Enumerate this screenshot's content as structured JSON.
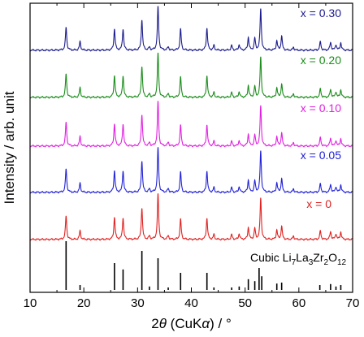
{
  "chart_data": {
    "type": "line",
    "title": "",
    "xlabel": "2θ (CuKα) / °",
    "ylabel": "Intensity / arb. unit",
    "xlim": [
      10,
      70
    ],
    "x_ticks": [
      "10",
      "20",
      "30",
      "40",
      "50",
      "60",
      "70"
    ],
    "grid": false,
    "legend": "labels placed inside the plot at the right of each pattern",
    "series": [
      {
        "name": "x = 0.30",
        "color": "#1a1a8c",
        "peaks": [
          [
            16.7,
            0.49
          ],
          [
            19.3,
            0.18
          ],
          [
            25.7,
            0.45
          ],
          [
            27.3,
            0.45
          ],
          [
            30.8,
            0.65
          ],
          [
            32.2,
            0.06
          ],
          [
            33.8,
            0.92
          ],
          [
            35.7,
            0.07
          ],
          [
            38.0,
            0.45
          ],
          [
            42.9,
            0.47
          ],
          [
            44.2,
            0.1
          ],
          [
            47.5,
            0.1
          ],
          [
            48.9,
            0.12
          ],
          [
            50.6,
            0.27
          ],
          [
            51.8,
            0.25
          ],
          [
            52.9,
            0.88
          ],
          [
            55.9,
            0.2
          ],
          [
            56.8,
            0.3
          ],
          [
            59.0,
            0.06
          ],
          [
            64.0,
            0.18
          ],
          [
            65.9,
            0.17
          ],
          [
            66.9,
            0.12
          ],
          [
            67.8,
            0.16
          ]
        ]
      },
      {
        "name": "x = 0.20",
        "color": "#1a8c1a",
        "peaks": [
          [
            16.7,
            0.5
          ],
          [
            19.3,
            0.2
          ],
          [
            25.7,
            0.46
          ],
          [
            27.3,
            0.46
          ],
          [
            30.8,
            0.66
          ],
          [
            32.2,
            0.07
          ],
          [
            33.8,
            0.93
          ],
          [
            35.7,
            0.08
          ],
          [
            38.0,
            0.43
          ],
          [
            42.9,
            0.46
          ],
          [
            44.2,
            0.1
          ],
          [
            47.5,
            0.1
          ],
          [
            48.9,
            0.12
          ],
          [
            50.6,
            0.25
          ],
          [
            51.8,
            0.23
          ],
          [
            52.9,
            0.86
          ],
          [
            55.9,
            0.2
          ],
          [
            56.8,
            0.28
          ],
          [
            59.0,
            0.07
          ],
          [
            64.0,
            0.18
          ],
          [
            65.9,
            0.17
          ],
          [
            66.9,
            0.12
          ],
          [
            67.8,
            0.16
          ]
        ]
      },
      {
        "name": "x = 0.10",
        "color": "#e020e0",
        "peaks": [
          [
            16.7,
            0.51
          ],
          [
            19.3,
            0.2
          ],
          [
            25.7,
            0.47
          ],
          [
            27.3,
            0.47
          ],
          [
            30.8,
            0.67
          ],
          [
            32.2,
            0.07
          ],
          [
            33.8,
            0.94
          ],
          [
            35.7,
            0.08
          ],
          [
            38.0,
            0.44
          ],
          [
            42.9,
            0.45
          ],
          [
            44.2,
            0.1
          ],
          [
            47.5,
            0.1
          ],
          [
            48.9,
            0.12
          ],
          [
            50.6,
            0.25
          ],
          [
            51.8,
            0.23
          ],
          [
            52.9,
            0.86
          ],
          [
            55.9,
            0.2
          ],
          [
            56.8,
            0.28
          ],
          [
            59.0,
            0.07
          ],
          [
            64.0,
            0.18
          ],
          [
            65.9,
            0.17
          ],
          [
            66.9,
            0.12
          ],
          [
            67.8,
            0.16
          ]
        ]
      },
      {
        "name": "x = 0.05",
        "color": "#2020d8",
        "peaks": [
          [
            16.7,
            0.5
          ],
          [
            19.3,
            0.19
          ],
          [
            25.7,
            0.46
          ],
          [
            27.3,
            0.46
          ],
          [
            30.8,
            0.67
          ],
          [
            32.2,
            0.07
          ],
          [
            33.8,
            0.94
          ],
          [
            35.7,
            0.08
          ],
          [
            38.0,
            0.43
          ],
          [
            42.9,
            0.45
          ],
          [
            44.2,
            0.1
          ],
          [
            47.5,
            0.1
          ],
          [
            48.9,
            0.12
          ],
          [
            50.6,
            0.26
          ],
          [
            51.8,
            0.24
          ],
          [
            52.9,
            0.88
          ],
          [
            55.9,
            0.2
          ],
          [
            56.8,
            0.29
          ],
          [
            59.0,
            0.07
          ],
          [
            64.0,
            0.18
          ],
          [
            65.9,
            0.17
          ],
          [
            66.9,
            0.12
          ],
          [
            67.8,
            0.16
          ]
        ]
      },
      {
        "name": "x = 0",
        "color": "#e02020",
        "peaks": [
          [
            16.7,
            0.5
          ],
          [
            19.3,
            0.18
          ],
          [
            25.7,
            0.47
          ],
          [
            27.3,
            0.46
          ],
          [
            30.8,
            0.67
          ],
          [
            32.2,
            0.07
          ],
          [
            33.8,
            0.96
          ],
          [
            35.7,
            0.08
          ],
          [
            38.0,
            0.43
          ],
          [
            42.9,
            0.45
          ],
          [
            44.2,
            0.1
          ],
          [
            47.5,
            0.1
          ],
          [
            48.9,
            0.12
          ],
          [
            50.6,
            0.25
          ],
          [
            51.8,
            0.23
          ],
          [
            52.9,
            0.88
          ],
          [
            55.9,
            0.2
          ],
          [
            56.8,
            0.28
          ],
          [
            59.0,
            0.07
          ],
          [
            64.0,
            0.18
          ],
          [
            65.9,
            0.17
          ],
          [
            66.9,
            0.12
          ],
          [
            67.8,
            0.16
          ]
        ]
      }
    ],
    "reference": {
      "name": "Cubic Li7La3Zr2O12",
      "label_parts": [
        {
          "text": "Cubic Li",
          "sub": false
        },
        {
          "text": "7",
          "sub": true
        },
        {
          "text": "La",
          "sub": false
        },
        {
          "text": "3",
          "sub": true
        },
        {
          "text": "Zr",
          "sub": false
        },
        {
          "text": "2",
          "sub": true
        },
        {
          "text": "O",
          "sub": false
        },
        {
          "text": "12",
          "sub": true
        }
      ],
      "color": "#000000",
      "sticks": [
        [
          16.7,
          1.0
        ],
        [
          19.3,
          0.1
        ],
        [
          25.7,
          0.55
        ],
        [
          27.3,
          0.42
        ],
        [
          30.8,
          0.8
        ],
        [
          32.2,
          0.07
        ],
        [
          33.8,
          0.65
        ],
        [
          35.7,
          0.05
        ],
        [
          38.0,
          0.35
        ],
        [
          42.9,
          0.35
        ],
        [
          44.2,
          0.05
        ],
        [
          47.5,
          0.05
        ],
        [
          48.9,
          0.07
        ],
        [
          50.6,
          0.22
        ],
        [
          51.8,
          0.18
        ],
        [
          52.6,
          0.45
        ],
        [
          53.1,
          0.28
        ],
        [
          55.9,
          0.13
        ],
        [
          56.8,
          0.15
        ],
        [
          63.9,
          0.1
        ],
        [
          65.9,
          0.12
        ],
        [
          66.9,
          0.07
        ],
        [
          67.8,
          0.1
        ]
      ]
    }
  }
}
